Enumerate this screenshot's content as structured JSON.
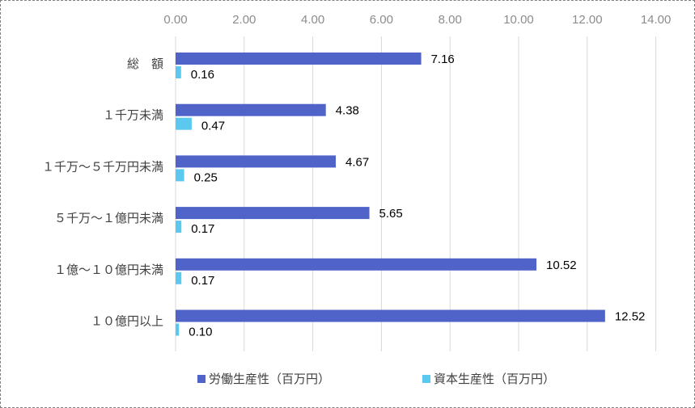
{
  "chart_data": {
    "type": "bar",
    "orientation": "horizontal",
    "categories": [
      "総　額",
      "１千万未満",
      "１千万～５千万円未満",
      "５千万～１億円未満",
      "１億～１０億円未満",
      "１０億円以上"
    ],
    "series": [
      {
        "name": "労働生産性（百万円）",
        "color": "#4f63c9",
        "values": [
          7.16,
          4.38,
          4.67,
          5.65,
          10.52,
          12.52
        ],
        "labels": [
          "7.16",
          "4.38",
          "4.67",
          "5.65",
          "10.52",
          "12.52"
        ]
      },
      {
        "name": "資本生産性（百万円）",
        "color": "#5bc8ef",
        "values": [
          0.16,
          0.47,
          0.25,
          0.17,
          0.17,
          0.1
        ],
        "labels": [
          "0.16",
          "0.47",
          "0.25",
          "0.17",
          "0.17",
          "0.10"
        ]
      }
    ],
    "xlim": [
      0,
      14
    ],
    "xticks": [
      "0.00",
      "2.00",
      "4.00",
      "6.00",
      "8.00",
      "10.00",
      "12.00",
      "14.00"
    ],
    "xaxis_position": "top",
    "grid": true,
    "legend_position": "bottom",
    "title": "",
    "xlabel": "",
    "ylabel": ""
  }
}
